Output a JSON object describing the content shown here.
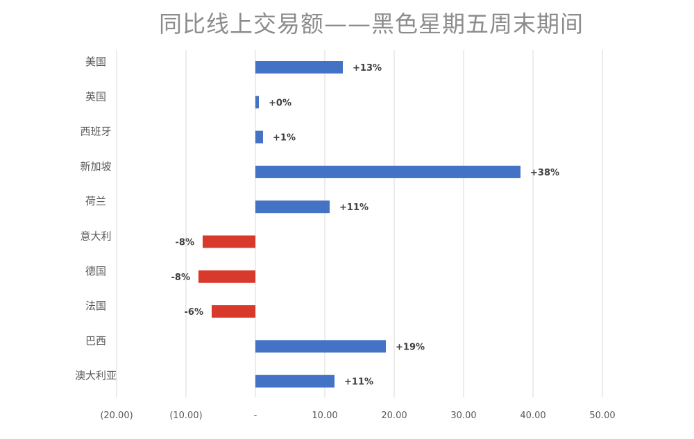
{
  "chart_data": {
    "type": "bar",
    "orientation": "horizontal",
    "title": "同比线上交易额——黑色星期五周末期间",
    "categories": [
      "美国",
      "英国",
      "西班牙",
      "新加坡",
      "荷兰",
      "意大利",
      "德国",
      "法国",
      "巴西",
      "澳大利亚"
    ],
    "values": [
      12.6,
      0.5,
      1.1,
      38.2,
      10.7,
      -7.6,
      -8.2,
      -6.3,
      18.8,
      11.4
    ],
    "data_labels": [
      "+13%",
      "+0%",
      "+1%",
      "+38%",
      "+11%",
      "-8%",
      "-8%",
      "-6%",
      "+19%",
      "+11%"
    ],
    "xlim": [
      -20,
      50
    ],
    "x_ticks": [
      -20,
      -10,
      0,
      10,
      20,
      30,
      40,
      50
    ],
    "x_tick_labels": [
      "(20.00)",
      "(10.00)",
      "-",
      "10.00",
      "20.00",
      "30.00",
      "40.00",
      "50.00"
    ],
    "grid": "vertical",
    "colors": {
      "positive": "#4472c4",
      "negative": "#d9392b",
      "grid": "#d9d9d9",
      "title": "#8c8c8c"
    }
  }
}
